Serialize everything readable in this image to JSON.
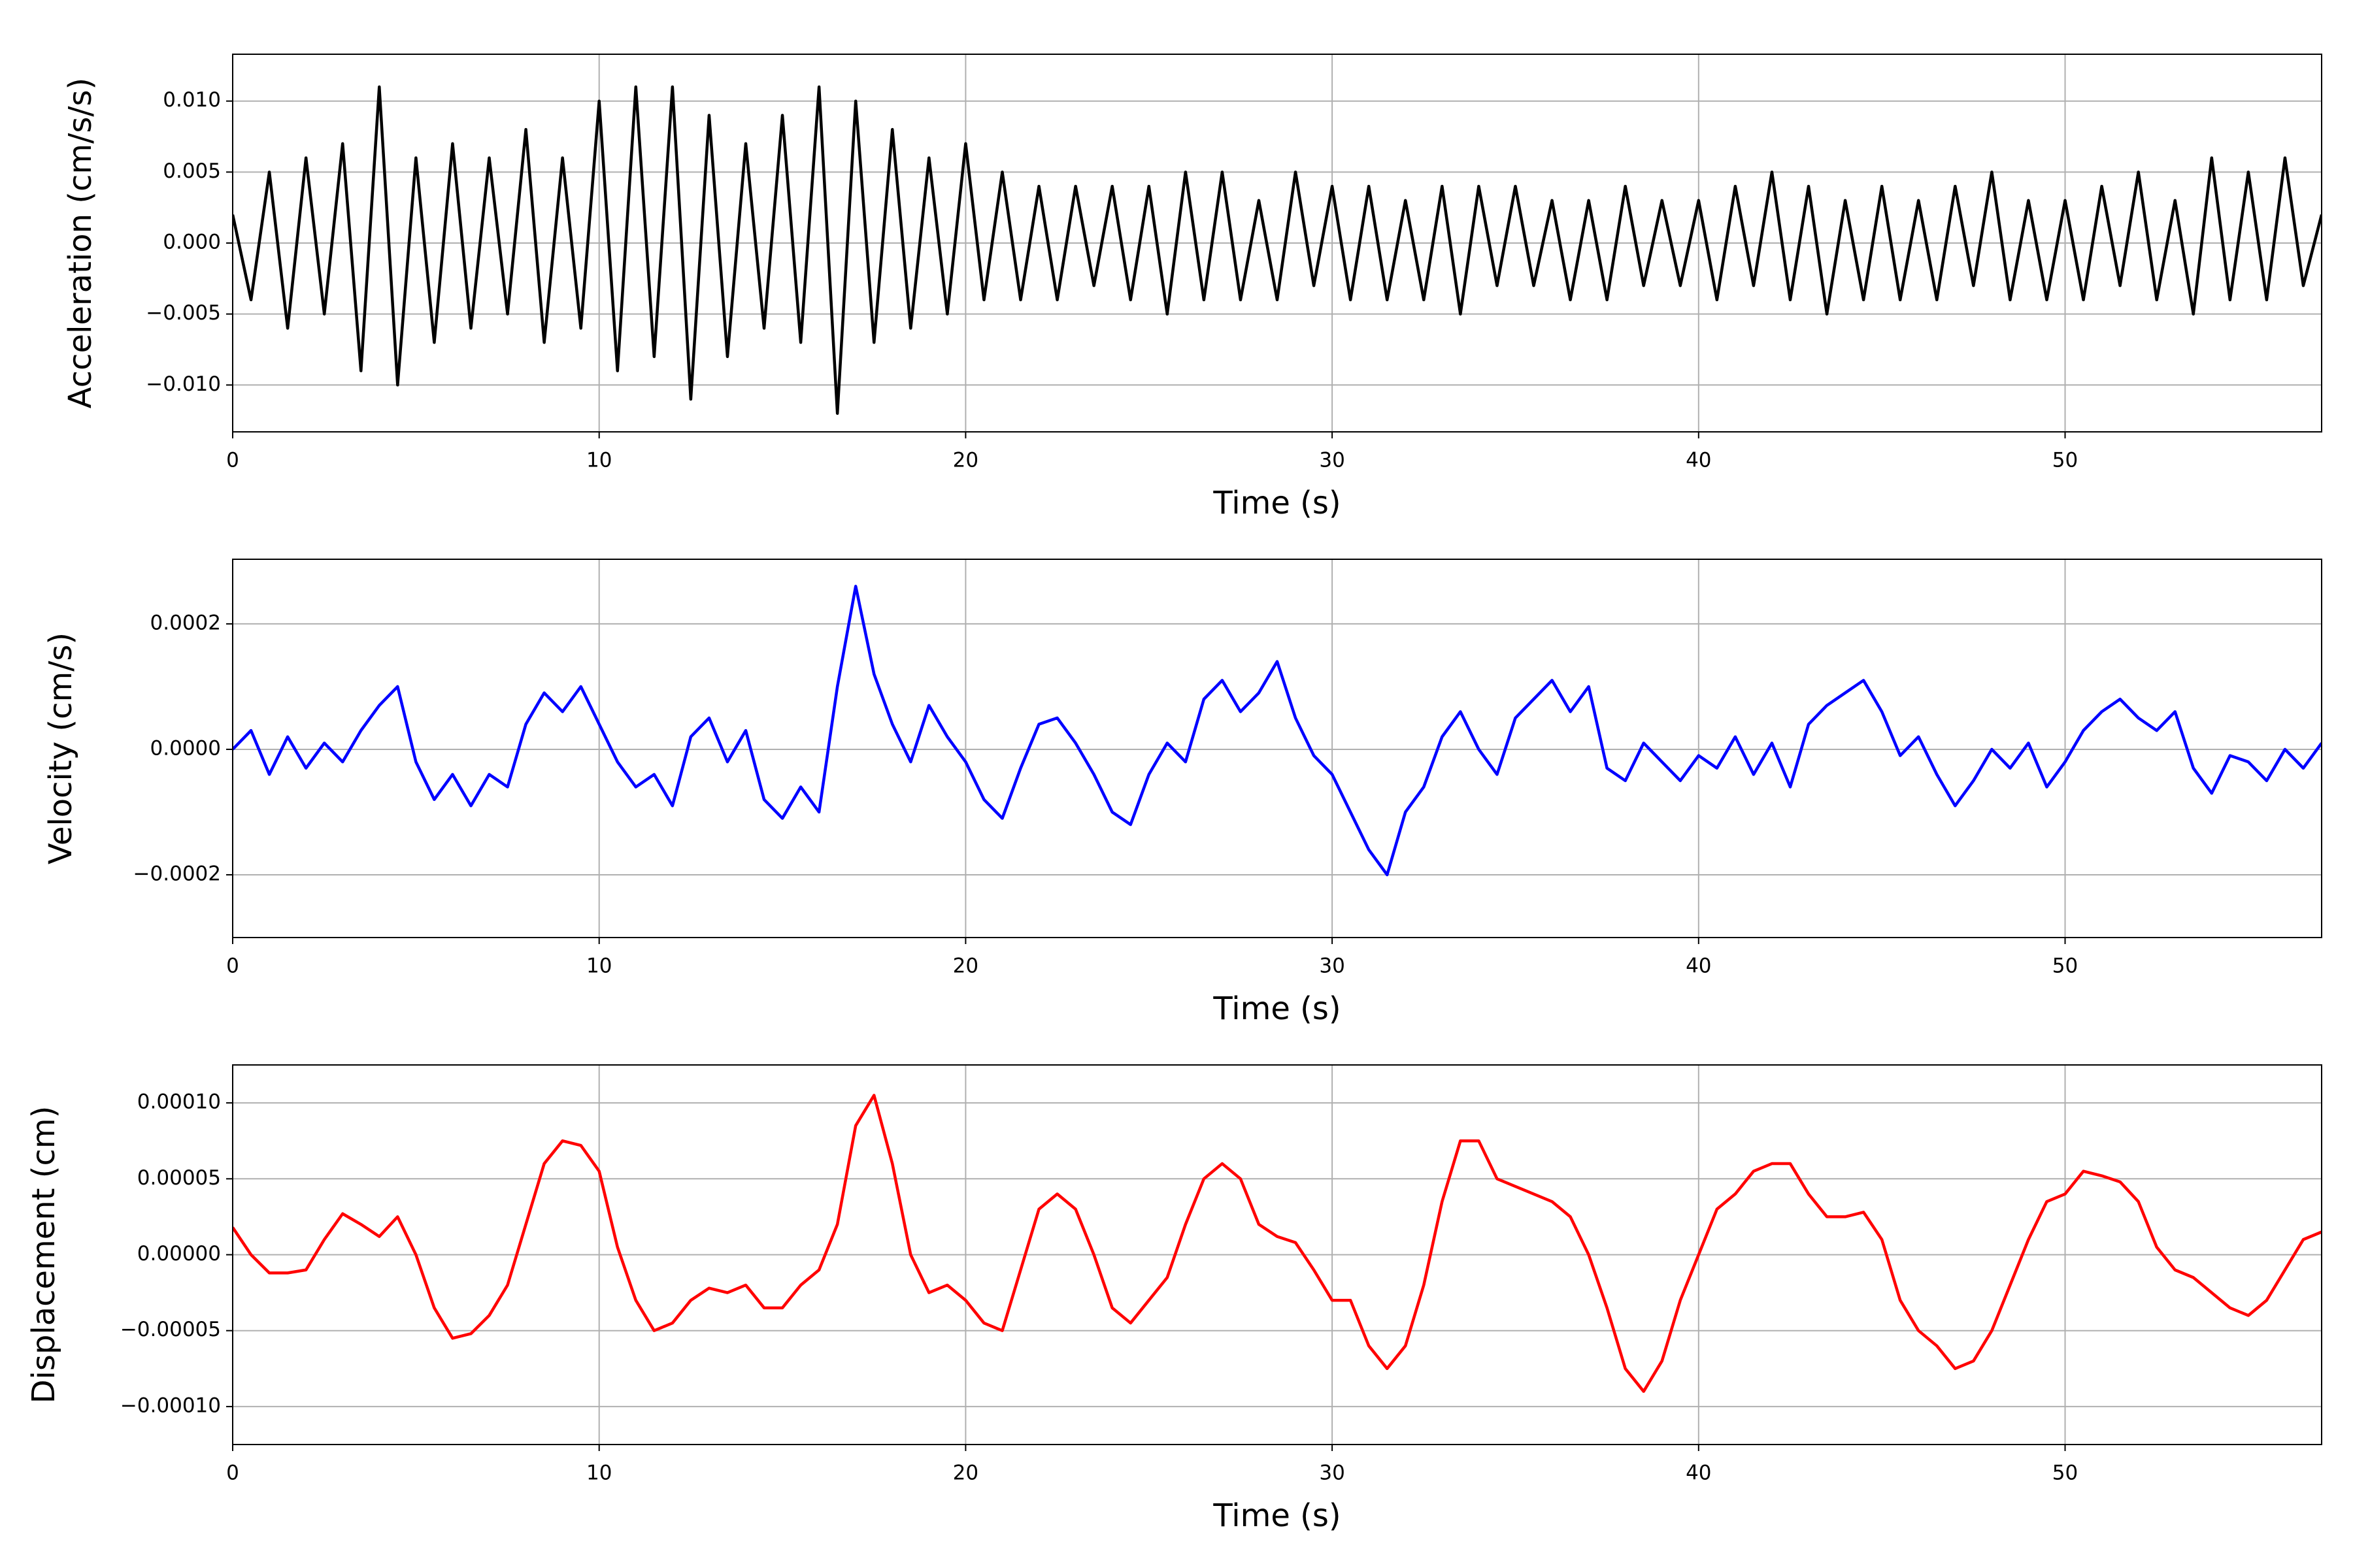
{
  "chart_data": [
    {
      "type": "line",
      "xlabel": "Time (s)",
      "ylabel": "Acceleration (cm/s/s)",
      "color": "#000000",
      "grid": true,
      "xlim": [
        0,
        57
      ],
      "xticks": [
        0,
        10,
        20,
        30,
        40,
        50
      ],
      "ylim": [
        -0.0133,
        0.0133
      ],
      "yticks": [
        {
          "value": -0.01,
          "label": "−0.010"
        },
        {
          "value": -0.005,
          "label": "−0.005"
        },
        {
          "value": 0,
          "label": "0.000"
        },
        {
          "value": 0.005,
          "label": "0.005"
        },
        {
          "value": 0.01,
          "label": "0.010"
        }
      ],
      "x": [
        0,
        0.5,
        1,
        1.5,
        2,
        2.5,
        3,
        3.5,
        4,
        4.5,
        5,
        5.5,
        6,
        6.5,
        7,
        7.5,
        8,
        8.5,
        9,
        9.5,
        10,
        10.5,
        11,
        11.5,
        12,
        12.5,
        13,
        13.5,
        14,
        14.5,
        15,
        15.5,
        16,
        16.5,
        17,
        17.5,
        18,
        18.5,
        19,
        19.5,
        20,
        20.5,
        21,
        21.5,
        22,
        22.5,
        23,
        23.5,
        24,
        24.5,
        25,
        25.5,
        26,
        26.5,
        27,
        27.5,
        28,
        28.5,
        29,
        29.5,
        30,
        30.5,
        31,
        31.5,
        32,
        32.5,
        33,
        33.5,
        34,
        34.5,
        35,
        35.5,
        36,
        36.5,
        37,
        37.5,
        38,
        38.5,
        39,
        39.5,
        40,
        40.5,
        41,
        41.5,
        42,
        42.5,
        43,
        43.5,
        44,
        44.5,
        45,
        45.5,
        46,
        46.5,
        47,
        47.5,
        48,
        48.5,
        49,
        49.5,
        50,
        50.5,
        51,
        51.5,
        52,
        52.5,
        53,
        53.5,
        54,
        54.5,
        55,
        55.5,
        56,
        56.5,
        57
      ],
      "values": [
        0.002,
        -0.004,
        0.005,
        -0.006,
        0.006,
        -0.005,
        0.007,
        -0.009,
        0.011,
        -0.01,
        0.006,
        -0.007,
        0.007,
        -0.006,
        0.006,
        -0.005,
        0.008,
        -0.007,
        0.006,
        -0.006,
        0.01,
        -0.009,
        0.011,
        -0.008,
        0.011,
        -0.011,
        0.009,
        -0.008,
        0.007,
        -0.006,
        0.009,
        -0.007,
        0.011,
        -0.012,
        0.01,
        -0.007,
        0.008,
        -0.006,
        0.006,
        -0.005,
        0.007,
        -0.004,
        0.005,
        -0.004,
        0.004,
        -0.004,
        0.004,
        -0.003,
        0.004,
        -0.004,
        0.004,
        -0.005,
        0.005,
        -0.004,
        0.005,
        -0.004,
        0.003,
        -0.004,
        0.005,
        -0.003,
        0.004,
        -0.004,
        0.004,
        -0.004,
        0.003,
        -0.004,
        0.004,
        -0.005,
        0.004,
        -0.003,
        0.004,
        -0.003,
        0.003,
        -0.004,
        0.003,
        -0.004,
        0.004,
        -0.003,
        0.003,
        -0.003,
        0.003,
        -0.004,
        0.004,
        -0.003,
        0.005,
        -0.004,
        0.004,
        -0.005,
        0.003,
        -0.004,
        0.004,
        -0.004,
        0.003,
        -0.004,
        0.004,
        -0.003,
        0.005,
        -0.004,
        0.003,
        -0.004,
        0.003,
        -0.004,
        0.004,
        -0.003,
        0.005,
        -0.004,
        0.003,
        -0.005,
        0.006,
        -0.004,
        0.005,
        -0.004,
        0.006,
        -0.003,
        0.002
      ]
    },
    {
      "type": "line",
      "xlabel": "Time (s)",
      "ylabel": "Velocity (cm/s)",
      "color": "#0000ff",
      "grid": true,
      "xlim": [
        0,
        57
      ],
      "xticks": [
        0,
        10,
        20,
        30,
        40,
        50
      ],
      "ylim": [
        -0.0003,
        0.000303
      ],
      "yticks": [
        {
          "value": -0.0002,
          "label": "−0.0002"
        },
        {
          "value": 0,
          "label": "0.0000"
        },
        {
          "value": 0.0002,
          "label": "0.0002"
        }
      ],
      "x": [
        0,
        0.5,
        1,
        1.5,
        2,
        2.5,
        3,
        3.5,
        4,
        4.5,
        5,
        5.5,
        6,
        6.5,
        7,
        7.5,
        8,
        8.5,
        9,
        9.5,
        10,
        10.5,
        11,
        11.5,
        12,
        12.5,
        13,
        13.5,
        14,
        14.5,
        15,
        15.5,
        16,
        16.5,
        17,
        17.5,
        18,
        18.5,
        19,
        19.5,
        20,
        20.5,
        21,
        21.5,
        22,
        22.5,
        23,
        23.5,
        24,
        24.5,
        25,
        25.5,
        26,
        26.5,
        27,
        27.5,
        28,
        28.5,
        29,
        29.5,
        30,
        30.5,
        31,
        31.5,
        32,
        32.5,
        33,
        33.5,
        34,
        34.5,
        35,
        35.5,
        36,
        36.5,
        37,
        37.5,
        38,
        38.5,
        39,
        39.5,
        40,
        40.5,
        41,
        41.5,
        42,
        42.5,
        43,
        43.5,
        44,
        44.5,
        45,
        45.5,
        46,
        46.5,
        47,
        47.5,
        48,
        48.5,
        49,
        49.5,
        50,
        50.5,
        51,
        51.5,
        52,
        52.5,
        53,
        53.5,
        54,
        54.5,
        55,
        55.5,
        56,
        56.5,
        57
      ],
      "values": [
        0,
        3e-05,
        -4e-05,
        2e-05,
        -3e-05,
        1e-05,
        -2e-05,
        3e-05,
        7e-05,
        0.0001,
        -2e-05,
        -8e-05,
        -4e-05,
        -9e-05,
        -4e-05,
        -6e-05,
        4e-05,
        9e-05,
        6e-05,
        0.0001,
        4e-05,
        -2e-05,
        -6e-05,
        -4e-05,
        -9e-05,
        2e-05,
        5e-05,
        -2e-05,
        3e-05,
        -8e-05,
        -0.00011,
        -6e-05,
        -0.0001,
        0.0001,
        0.00026,
        0.00012,
        4e-05,
        -2e-05,
        7e-05,
        2e-05,
        -2e-05,
        -8e-05,
        -0.00011,
        -3e-05,
        4e-05,
        5e-05,
        1e-05,
        -4e-05,
        -0.0001,
        -0.00012,
        -4e-05,
        1e-05,
        -2e-05,
        8e-05,
        0.00011,
        6e-05,
        9e-05,
        0.00014,
        5e-05,
        -1e-05,
        -4e-05,
        -0.0001,
        -0.00016,
        -0.0002,
        -0.0001,
        -6e-05,
        2e-05,
        6e-05,
        0,
        -4e-05,
        5e-05,
        8e-05,
        0.00011,
        6e-05,
        0.0001,
        -3e-05,
        -5e-05,
        1e-05,
        -2e-05,
        -5e-05,
        -1e-05,
        -3e-05,
        2e-05,
        -4e-05,
        1e-05,
        -6e-05,
        4e-05,
        7e-05,
        9e-05,
        0.00011,
        6e-05,
        -1e-05,
        2e-05,
        -4e-05,
        -9e-05,
        -5e-05,
        0,
        -3e-05,
        1e-05,
        -6e-05,
        -2e-05,
        3e-05,
        6e-05,
        8e-05,
        5e-05,
        3e-05,
        6e-05,
        -3e-05,
        -7e-05,
        -1e-05,
        -2e-05,
        -5e-05,
        0,
        -3e-05,
        1e-05
      ]
    },
    {
      "type": "line",
      "xlabel": "Time (s)",
      "ylabel": "Displacement (cm)",
      "color": "#ff0000",
      "grid": true,
      "xlim": [
        0,
        57
      ],
      "xticks": [
        0,
        10,
        20,
        30,
        40,
        50
      ],
      "ylim": [
        -0.000125,
        0.000125
      ],
      "yticks": [
        {
          "value": -0.0001,
          "label": "−0.00010"
        },
        {
          "value": -5e-05,
          "label": "−0.00005"
        },
        {
          "value": 0,
          "label": "0.00000"
        },
        {
          "value": 5e-05,
          "label": "0.00005"
        },
        {
          "value": 0.0001,
          "label": "0.00010"
        }
      ],
      "x": [
        0,
        0.5,
        1,
        1.5,
        2,
        2.5,
        3,
        3.5,
        4,
        4.5,
        5,
        5.5,
        6,
        6.5,
        7,
        7.5,
        8,
        8.5,
        9,
        9.5,
        10,
        10.5,
        11,
        11.5,
        12,
        12.5,
        13,
        13.5,
        14,
        14.5,
        15,
        15.5,
        16,
        16.5,
        17,
        17.5,
        18,
        18.5,
        19,
        19.5,
        20,
        20.5,
        21,
        21.5,
        22,
        22.5,
        23,
        23.5,
        24,
        24.5,
        25,
        25.5,
        26,
        26.5,
        27,
        27.5,
        28,
        28.5,
        29,
        29.5,
        30,
        30.5,
        31,
        31.5,
        32,
        32.5,
        33,
        33.5,
        34,
        34.5,
        35,
        35.5,
        36,
        36.5,
        37,
        37.5,
        38,
        38.5,
        39,
        39.5,
        40,
        40.5,
        41,
        41.5,
        42,
        42.5,
        43,
        43.5,
        44,
        44.5,
        45,
        45.5,
        46,
        46.5,
        47,
        47.5,
        48,
        48.5,
        49,
        49.5,
        50,
        50.5,
        51,
        51.5,
        52,
        52.5,
        53,
        53.5,
        54,
        54.5,
        55,
        55.5,
        56,
        56.5,
        57
      ],
      "values": [
        1.8e-05,
        0,
        -1.2e-05,
        -1.2e-05,
        -1e-05,
        1e-05,
        2.7e-05,
        2e-05,
        1.2e-05,
        2.5e-05,
        0,
        -3.5e-05,
        -5.5e-05,
        -5.2e-05,
        -4e-05,
        -2e-05,
        2e-05,
        6e-05,
        7.5e-05,
        7.2e-05,
        5.5e-05,
        5e-06,
        -3e-05,
        -5e-05,
        -4.5e-05,
        -3e-05,
        -2.2e-05,
        -2.5e-05,
        -2e-05,
        -3.5e-05,
        -3.5e-05,
        -2e-05,
        -1e-05,
        2e-05,
        8.5e-05,
        0.000105,
        6e-05,
        0,
        -2.5e-05,
        -2e-05,
        -3e-05,
        -4.5e-05,
        -5e-05,
        -1e-05,
        3e-05,
        4e-05,
        3e-05,
        0,
        -3.5e-05,
        -4.5e-05,
        -3e-05,
        -1.5e-05,
        2e-05,
        5e-05,
        6e-05,
        5e-05,
        2e-05,
        1.2e-05,
        8e-06,
        -1e-05,
        -3e-05,
        -3e-05,
        -6e-05,
        -7.5e-05,
        -6e-05,
        -2e-05,
        3.5e-05,
        7.5e-05,
        7.5e-05,
        5e-05,
        4.5e-05,
        4e-05,
        3.5e-05,
        2.5e-05,
        0,
        -3.5e-05,
        -7.5e-05,
        -9e-05,
        -7e-05,
        -3e-05,
        0,
        3e-05,
        4e-05,
        5.5e-05,
        6e-05,
        6e-05,
        4e-05,
        2.5e-05,
        2.5e-05,
        2.8e-05,
        1e-05,
        -3e-05,
        -5e-05,
        -6e-05,
        -7.5e-05,
        -7e-05,
        -5e-05,
        -2e-05,
        1e-05,
        3.5e-05,
        4e-05,
        5.5e-05,
        5.2e-05,
        4.8e-05,
        3.5e-05,
        5e-06,
        -1e-05,
        -1.5e-05,
        -2.5e-05,
        -3.5e-05,
        -4e-05,
        -3e-05,
        -1e-05,
        1e-05,
        1.5e-05
      ]
    }
  ]
}
